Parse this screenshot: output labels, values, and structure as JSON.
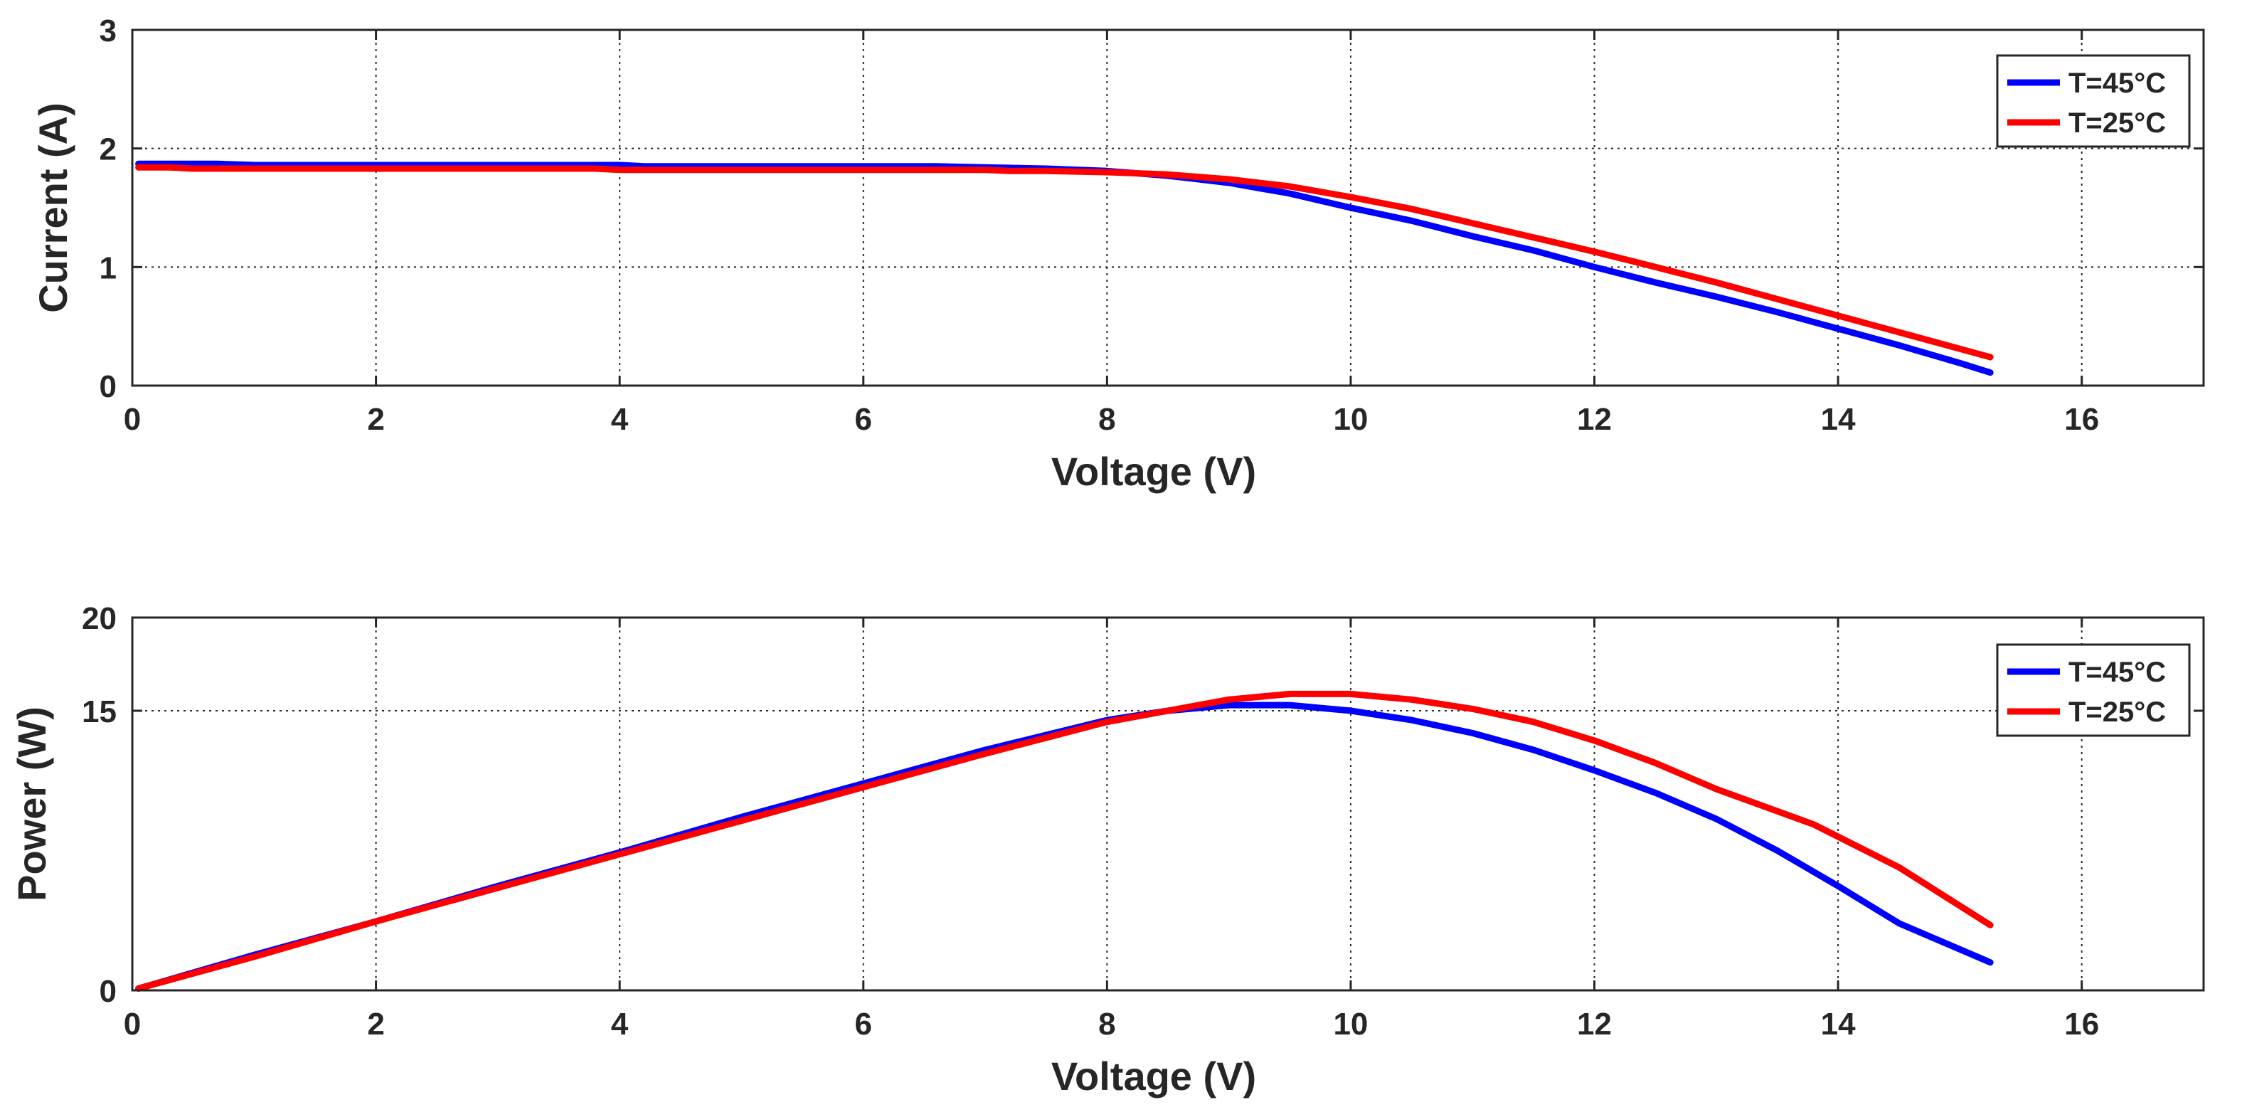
{
  "chart_data": [
    {
      "type": "line",
      "xlabel": "Voltage (V)",
      "ylabel": "Current (A)",
      "xlim": [
        0,
        17
      ],
      "ylim": [
        0,
        3
      ],
      "xticks": [
        0,
        2,
        4,
        6,
        8,
        10,
        12,
        14,
        16
      ],
      "yticks": [
        0,
        1,
        2,
        3
      ],
      "grid": true,
      "legend_position": "top-right",
      "series": [
        {
          "name": "T=45°C",
          "color": "#0000ff",
          "x": [
            0.05,
            0.7,
            1,
            2,
            3,
            4,
            4.2,
            5,
            6,
            6.6,
            7,
            7.5,
            8,
            8.5,
            9,
            9.5,
            10,
            10.5,
            11,
            11.5,
            12,
            12.5,
            13,
            13.5,
            14,
            14.5,
            15,
            15.25
          ],
          "y": [
            1.87,
            1.87,
            1.86,
            1.86,
            1.86,
            1.86,
            1.85,
            1.85,
            1.85,
            1.85,
            1.84,
            1.83,
            1.81,
            1.77,
            1.71,
            1.62,
            1.5,
            1.39,
            1.26,
            1.14,
            1.0,
            0.87,
            0.75,
            0.62,
            0.48,
            0.34,
            0.19,
            0.11
          ]
        },
        {
          "name": "T=25°C",
          "color": "#ff0000",
          "x": [
            0.05,
            0.3,
            0.5,
            1,
            2,
            3,
            3.8,
            4,
            5,
            6,
            7,
            7.2,
            7.5,
            8,
            8.5,
            9,
            9.5,
            10,
            10.5,
            11,
            11.5,
            12,
            12.5,
            13,
            13.5,
            14,
            14.5,
            15,
            15.25
          ],
          "y": [
            1.84,
            1.84,
            1.83,
            1.83,
            1.83,
            1.83,
            1.83,
            1.82,
            1.82,
            1.82,
            1.82,
            1.81,
            1.81,
            1.8,
            1.78,
            1.74,
            1.68,
            1.59,
            1.49,
            1.37,
            1.25,
            1.13,
            1.0,
            0.87,
            0.73,
            0.59,
            0.45,
            0.31,
            0.24
          ]
        }
      ]
    },
    {
      "type": "line",
      "xlabel": "Voltage (V)",
      "ylabel": "Power (W)",
      "xlim": [
        0,
        17
      ],
      "ylim": [
        0,
        20
      ],
      "xticks": [
        0,
        2,
        4,
        6,
        8,
        10,
        12,
        14,
        16
      ],
      "yticks": [
        0,
        15,
        20
      ],
      "grid": true,
      "legend_position": "top-right",
      "series": [
        {
          "name": "T=45°C",
          "color": "#0000ff",
          "x": [
            0.05,
            1,
            2,
            3,
            4,
            5,
            6,
            7,
            8,
            8.5,
            9,
            9.5,
            10,
            10.5,
            11,
            11.5,
            12,
            12.5,
            13,
            13.5,
            14,
            14.5,
            15.25
          ],
          "y": [
            0.1,
            1.9,
            3.7,
            5.6,
            7.4,
            9.3,
            11.1,
            12.9,
            14.5,
            15.0,
            15.3,
            15.3,
            15.0,
            14.5,
            13.8,
            12.9,
            11.8,
            10.6,
            9.2,
            7.5,
            5.6,
            3.6,
            1.5
          ]
        },
        {
          "name": "T=25°C",
          "color": "#ff0000",
          "x": [
            0.05,
            1,
            2,
            3,
            4,
            5,
            6,
            7,
            8,
            8.5,
            9,
            9.5,
            10,
            10.5,
            11,
            11.5,
            12,
            12.5,
            13,
            13.8,
            14.5,
            15.25
          ],
          "y": [
            0.1,
            1.8,
            3.7,
            5.5,
            7.3,
            9.1,
            10.9,
            12.7,
            14.4,
            15.0,
            15.6,
            15.9,
            15.9,
            15.6,
            15.1,
            14.4,
            13.4,
            12.2,
            10.8,
            8.9,
            6.6,
            3.5
          ]
        }
      ]
    }
  ]
}
